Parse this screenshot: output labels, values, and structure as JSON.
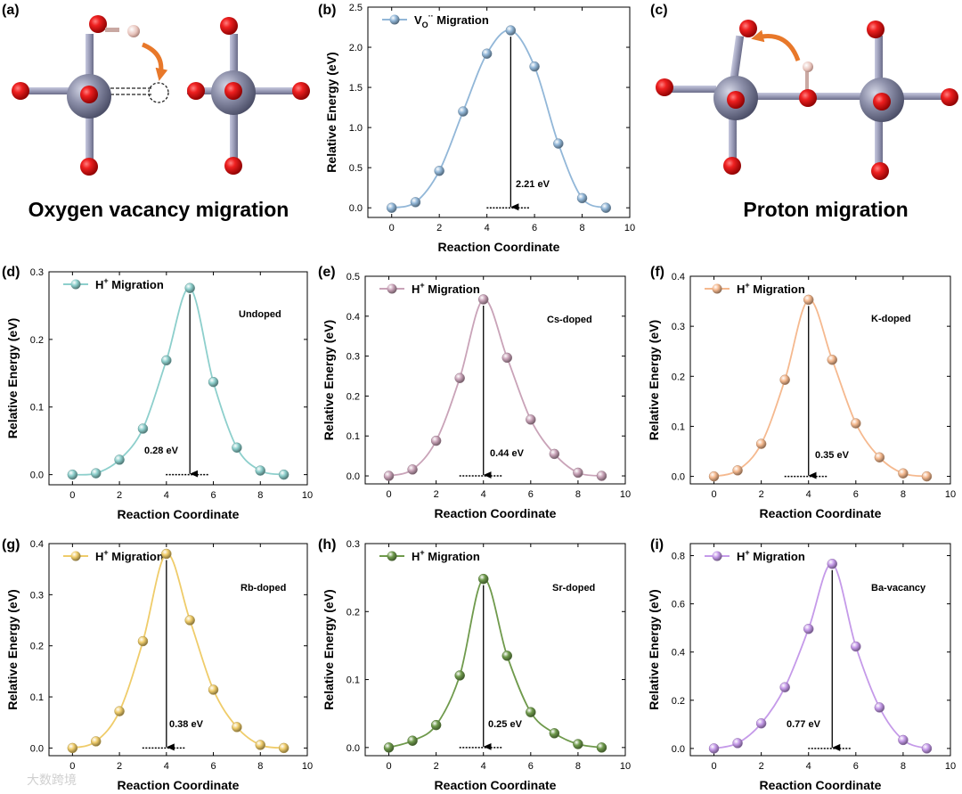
{
  "panels": {
    "a": {
      "label": "(a)",
      "title": "Oxygen vacancy migration"
    },
    "c": {
      "label": "(c)",
      "title": "Proton migration"
    }
  },
  "watermark": "大数跨境",
  "colors": {
    "orange_arrow": "#e8782a",
    "atom_red": "#e31a1c",
    "atom_grey": "#8d90aa",
    "bond": "#9a9cb8"
  },
  "chart_data": [
    {
      "id": "b",
      "label": "(b)",
      "type": "line",
      "color": "#92b7d8",
      "legend": "V",
      "legend_sub": "O",
      "legend_sup": "··",
      "legend_rest": " Migration",
      "annotation": "",
      "barrier": "2.21 eV",
      "x": [
        0,
        1,
        2,
        3,
        4,
        5,
        6,
        7,
        8,
        9
      ],
      "y": [
        0.0,
        0.07,
        0.46,
        1.2,
        1.92,
        2.21,
        1.76,
        0.8,
        0.12,
        0.0
      ],
      "peak_index": 5,
      "xlim": [
        -1,
        10
      ],
      "ylim": [
        -0.12,
        2.5
      ],
      "yticks": [
        "0.0",
        "0.5",
        "1.0",
        "1.5",
        "2.0",
        "2.5"
      ],
      "ytick_values": [
        0,
        0.5,
        1.0,
        1.5,
        2.0,
        2.5
      ],
      "xticks": [
        0,
        2,
        4,
        6,
        8,
        10
      ],
      "xlabel": "Reaction Coordinate",
      "ylabel": "Relative Energy (eV)"
    },
    {
      "id": "d",
      "label": "(d)",
      "type": "line",
      "color": "#8dcfcc",
      "legend": "H",
      "legend_sup": "+",
      "legend_rest": " Migration",
      "annotation": "Undoped",
      "barrier": "0.28 eV",
      "x": [
        0,
        1,
        2,
        3,
        4,
        5,
        6,
        7,
        8,
        9
      ],
      "y": [
        0.0,
        0.002,
        0.022,
        0.068,
        0.169,
        0.276,
        0.137,
        0.04,
        0.006,
        0.0
      ],
      "peak_index": 5,
      "xlim": [
        -1,
        10
      ],
      "ylim": [
        -0.015,
        0.3
      ],
      "yticks": [
        "0.0",
        "0.1",
        "0.2",
        "0.3"
      ],
      "ytick_values": [
        0,
        0.1,
        0.2,
        0.3
      ],
      "xticks": [
        0,
        2,
        4,
        6,
        8,
        10
      ],
      "xlabel": "Reaction Coordinate",
      "ylabel": "Relative Energy (eV)"
    },
    {
      "id": "e",
      "label": "(e)",
      "type": "line",
      "color": "#c9a3b8",
      "legend": "H",
      "legend_sup": "+",
      "legend_rest": " Migration",
      "annotation": "Cs-doped",
      "barrier": "0.44 eV",
      "x": [
        0,
        1,
        2,
        3,
        4,
        5,
        6,
        7,
        8,
        9
      ],
      "y": [
        0.0,
        0.016,
        0.088,
        0.245,
        0.442,
        0.296,
        0.141,
        0.055,
        0.008,
        0.0
      ],
      "peak_index": 4,
      "xlim": [
        -1,
        10
      ],
      "ylim": [
        -0.02,
        0.5
      ],
      "yticks": [
        "0.0",
        "0.1",
        "0.2",
        "0.3",
        "0.4",
        "0.5"
      ],
      "ytick_values": [
        0,
        0.1,
        0.2,
        0.3,
        0.4,
        0.5
      ],
      "xticks": [
        0,
        2,
        4,
        6,
        8,
        10
      ],
      "xlabel": "Reaction Coordinate",
      "ylabel": "Relative Energy (eV)"
    },
    {
      "id": "f",
      "label": "(f)",
      "type": "line",
      "color": "#f5b98f",
      "legend": "H",
      "legend_sup": "+",
      "legend_rest": " Migration",
      "annotation": "K-doped",
      "barrier": "0.35 eV",
      "x": [
        0,
        1,
        2,
        3,
        4,
        5,
        6,
        7,
        8,
        9
      ],
      "y": [
        0.0,
        0.012,
        0.065,
        0.193,
        0.353,
        0.233,
        0.106,
        0.038,
        0.006,
        0.0
      ],
      "peak_index": 4,
      "xlim": [
        -1,
        10
      ],
      "ylim": [
        -0.015,
        0.4
      ],
      "yticks": [
        "0.0",
        "0.1",
        "0.2",
        "0.3",
        "0.4"
      ],
      "ytick_values": [
        0,
        0.1,
        0.2,
        0.3,
        0.4
      ],
      "xticks": [
        0,
        2,
        4,
        6,
        8,
        10
      ],
      "xlabel": "Reaction Coordinate",
      "ylabel": "Relative Energy (eV)"
    },
    {
      "id": "g",
      "label": "(g)",
      "type": "line",
      "color": "#efcc6a",
      "legend": "H",
      "legend_sup": "+",
      "legend_rest": " Migration",
      "annotation": "Rb-doped",
      "barrier": "0.38 eV",
      "x": [
        0,
        1,
        2,
        3,
        4,
        5,
        6,
        7,
        8,
        9
      ],
      "y": [
        0.0,
        0.013,
        0.072,
        0.209,
        0.38,
        0.25,
        0.114,
        0.041,
        0.006,
        0.0
      ],
      "peak_index": 4,
      "xlim": [
        -1,
        10
      ],
      "ylim": [
        -0.015,
        0.4
      ],
      "yticks": [
        "0.0",
        "0.1",
        "0.2",
        "0.3",
        "0.4"
      ],
      "ytick_values": [
        0,
        0.1,
        0.2,
        0.3,
        0.4
      ],
      "xticks": [
        0,
        2,
        4,
        6,
        8,
        10
      ],
      "xlabel": "Reaction Coordinate",
      "ylabel": "Relative Energy (eV)"
    },
    {
      "id": "h",
      "label": "(h)",
      "type": "line",
      "color": "#6f9a4c",
      "legend": "H",
      "legend_sup": "+",
      "legend_rest": " Migration",
      "annotation": "Sr-doped",
      "barrier": "0.25 eV",
      "x": [
        0,
        1,
        2,
        3,
        4,
        5,
        6,
        7,
        8,
        9
      ],
      "y": [
        0.0,
        0.01,
        0.033,
        0.106,
        0.248,
        0.135,
        0.052,
        0.021,
        0.005,
        0.0
      ],
      "peak_index": 4,
      "xlim": [
        -1,
        10
      ],
      "ylim": [
        -0.012,
        0.3
      ],
      "yticks": [
        "0.0",
        "0.1",
        "0.2",
        "0.3"
      ],
      "ytick_values": [
        0,
        0.1,
        0.2,
        0.3
      ],
      "xticks": [
        0,
        2,
        4,
        6,
        8,
        10
      ],
      "xlabel": "Reaction Coordinate",
      "ylabel": "Relative Energy (eV)"
    },
    {
      "id": "i",
      "label": "(i)",
      "type": "line",
      "color": "#c59ae9",
      "legend": "H",
      "legend_sup": "+",
      "legend_rest": " Migration",
      "annotation": "Ba-vacancy",
      "barrier": "0.77 eV",
      "x": [
        0,
        1,
        2,
        3,
        4,
        5,
        6,
        7,
        8,
        9
      ],
      "y": [
        0.0,
        0.022,
        0.104,
        0.254,
        0.496,
        0.766,
        0.423,
        0.17,
        0.035,
        0.0
      ],
      "peak_index": 5,
      "xlim": [
        -1,
        10
      ],
      "ylim": [
        -0.03,
        0.85
      ],
      "yticks": [
        "0.0",
        "0.2",
        "0.4",
        "0.6",
        "0.8"
      ],
      "ytick_values": [
        0,
        0.2,
        0.4,
        0.6,
        0.8
      ],
      "xticks": [
        0,
        2,
        4,
        6,
        8,
        10
      ],
      "xlabel": "Reaction Coordinate",
      "ylabel": "Relative Energy (eV)"
    }
  ]
}
